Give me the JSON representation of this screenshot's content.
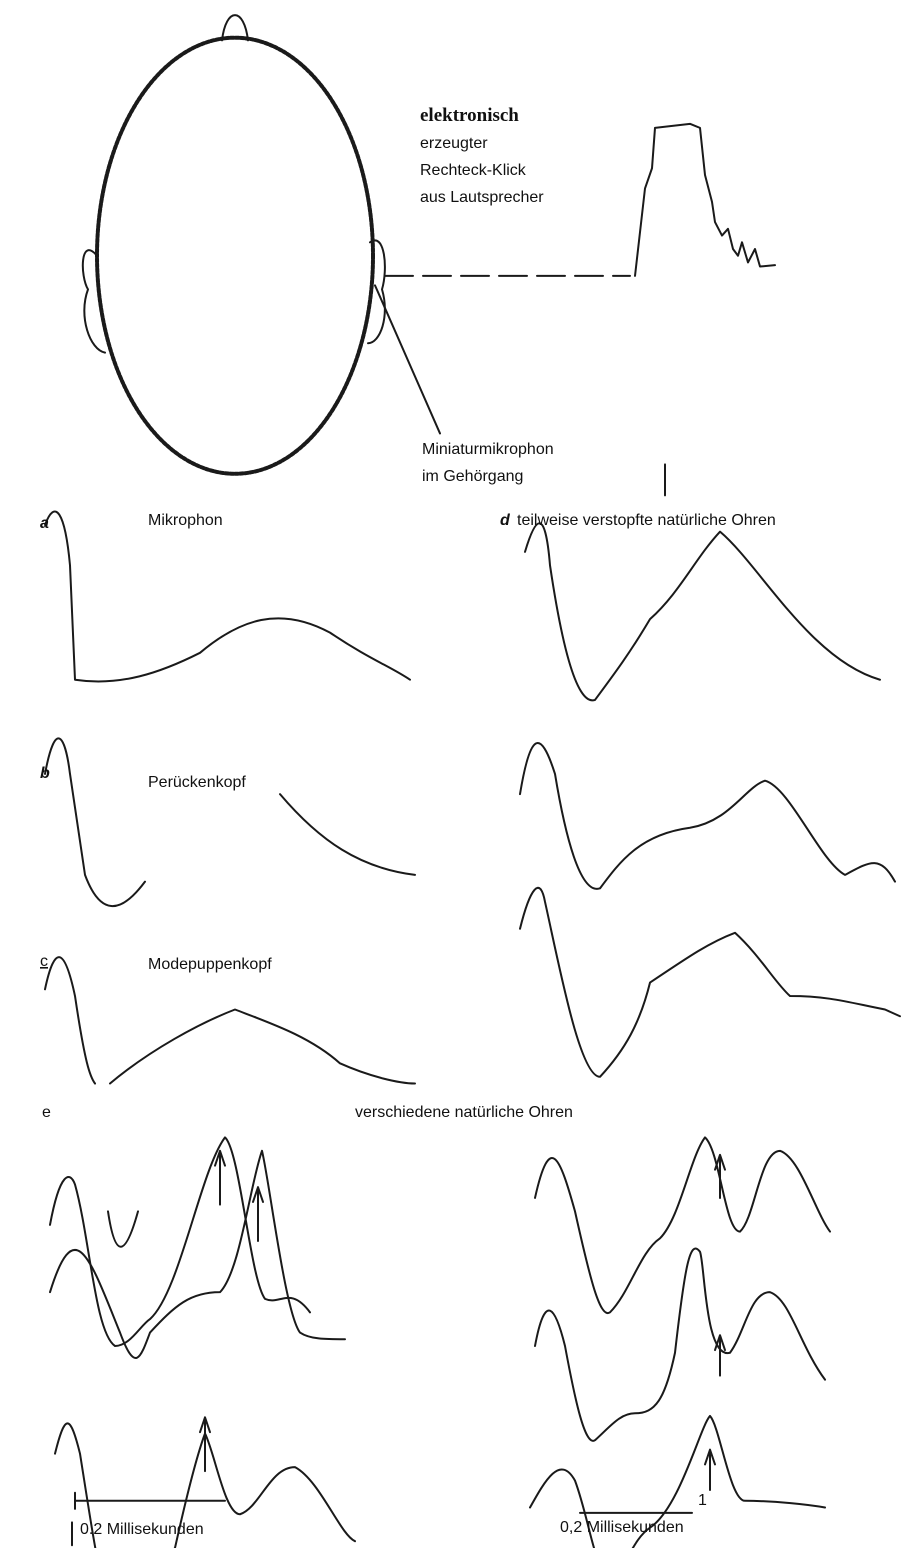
{
  "header": {
    "click_label": [
      "elektronisch",
      "erzeugter",
      "Rechteck-Klick",
      "aus Lautsprecher"
    ],
    "microphone_label": [
      "Miniaturmikrophon",
      "im Gehörgang"
    ]
  },
  "panels": [
    {
      "letter": "a",
      "label": "Mikrophon"
    },
    {
      "letter": "b",
      "label": "Perückenkopf"
    },
    {
      "letter": "c",
      "label": "Modepuppenkopf"
    },
    {
      "letter": "d",
      "label": "teilweise verstopfte natürliche Ohren"
    },
    {
      "letter": "e",
      "label": "verschiedene natürliche Ohren"
    }
  ],
  "scale_bars": [
    {
      "label": "0.2 Millisekunden"
    },
    {
      "mark": "1",
      "label": "0,2 Millisekunden"
    }
  ]
}
